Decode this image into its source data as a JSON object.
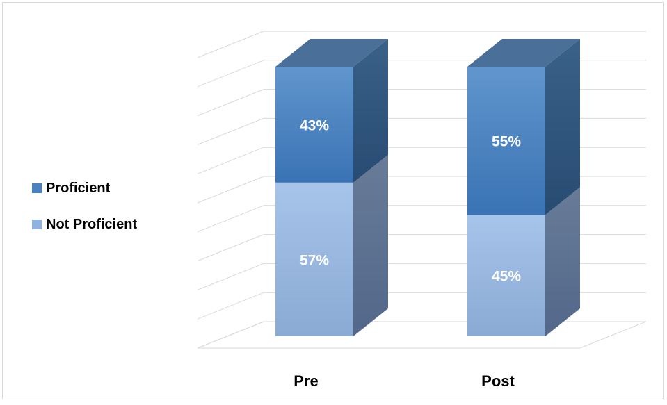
{
  "chart_data": {
    "type": "bar",
    "stacked": true,
    "three_d": true,
    "percent_stacked": true,
    "categories": [
      "Pre",
      "Post"
    ],
    "series": [
      {
        "name": "Not Proficient",
        "values": [
          57,
          45
        ],
        "labels": [
          "57%",
          "45%"
        ],
        "color": "#8fb2df"
      },
      {
        "name": "Proficient",
        "values": [
          43,
          55
        ],
        "labels": [
          "43%",
          "55%"
        ],
        "color": "#4a82c0"
      }
    ],
    "ylim": [
      0,
      100
    ],
    "grid": true,
    "legend": {
      "position": "left",
      "entries": [
        "Proficient",
        "Not Proficient"
      ]
    }
  },
  "colors": {
    "proficient": "#4a82c0",
    "not_proficient": "#8fb2df",
    "gridline": "#d9d9d9"
  }
}
